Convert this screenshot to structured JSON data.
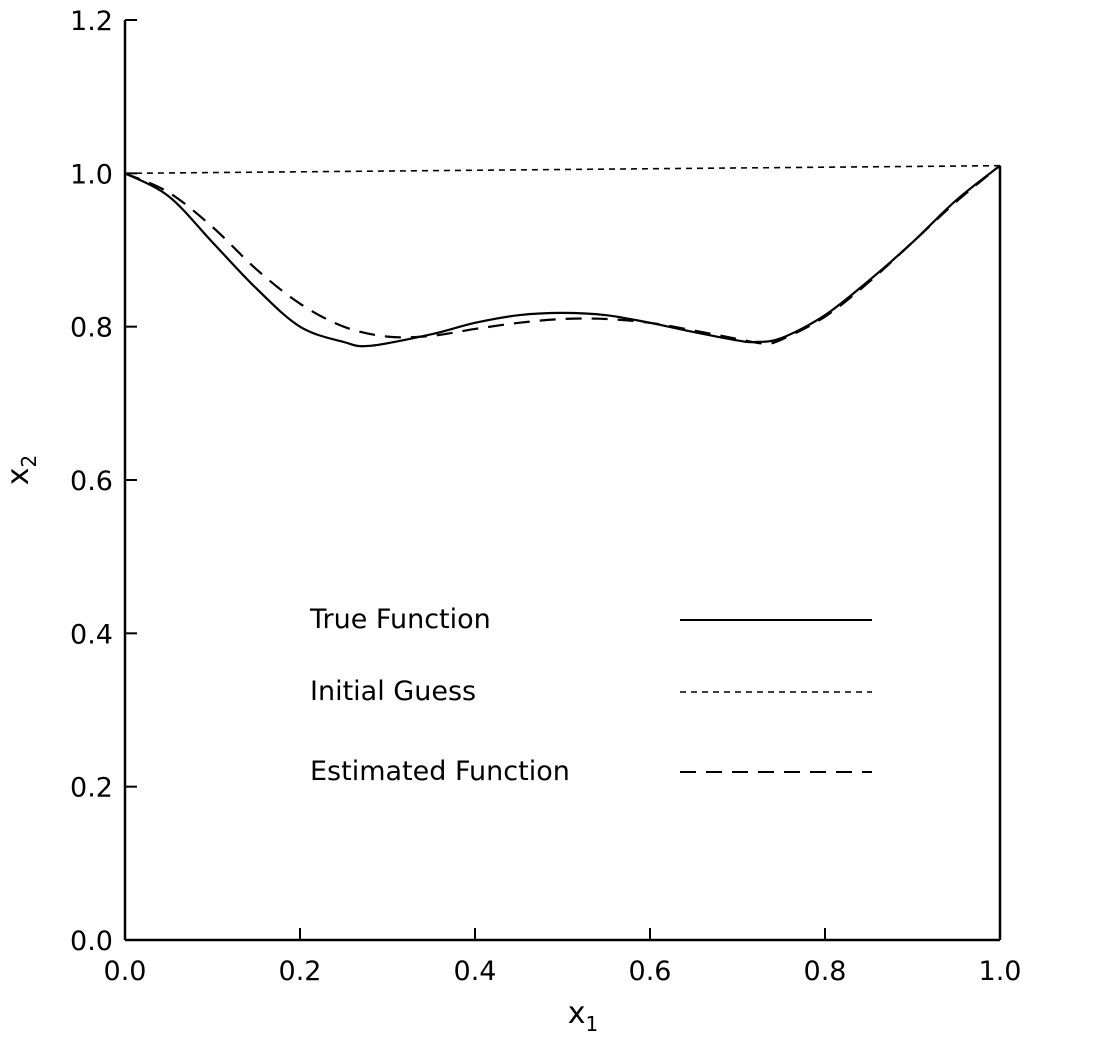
{
  "chart_data": {
    "type": "line",
    "xlabel": "x",
    "xlabel_sub": "1",
    "ylabel": "x",
    "ylabel_sub": "2",
    "xlim": [
      0.0,
      1.0
    ],
    "ylim": [
      0.0,
      1.2
    ],
    "x_ticks": [
      "0.0",
      "0.2",
      "0.4",
      "0.6",
      "0.8",
      "1.0"
    ],
    "y_ticks": [
      "0.0",
      "0.2",
      "0.4",
      "0.6",
      "0.8",
      "1.0",
      "1.2"
    ],
    "grid": false,
    "legend_position": "center",
    "series": [
      {
        "name": "True Function",
        "style": "solid",
        "x": [
          0.0,
          0.05,
          0.1,
          0.15,
          0.2,
          0.25,
          0.28,
          0.35,
          0.4,
          0.45,
          0.5,
          0.55,
          0.6,
          0.65,
          0.7,
          0.72,
          0.75,
          0.8,
          0.85,
          0.9,
          0.95,
          1.0
        ],
        "y": [
          1.0,
          0.97,
          0.91,
          0.85,
          0.8,
          0.78,
          0.775,
          0.79,
          0.805,
          0.815,
          0.818,
          0.815,
          0.805,
          0.793,
          0.782,
          0.78,
          0.785,
          0.815,
          0.86,
          0.91,
          0.965,
          1.01
        ]
      },
      {
        "name": "Initial Guess",
        "style": "dotted",
        "x": [
          0.0,
          1.0
        ],
        "y": [
          1.0,
          1.01
        ]
      },
      {
        "name": "Estimated Function",
        "style": "dashed",
        "x": [
          0.0,
          0.05,
          0.1,
          0.15,
          0.2,
          0.25,
          0.3,
          0.35,
          0.4,
          0.45,
          0.5,
          0.55,
          0.6,
          0.65,
          0.7,
          0.73,
          0.75,
          0.8,
          0.85,
          0.9,
          0.95,
          1.0
        ],
        "y": [
          1.0,
          0.975,
          0.93,
          0.875,
          0.83,
          0.8,
          0.787,
          0.788,
          0.797,
          0.805,
          0.81,
          0.81,
          0.805,
          0.795,
          0.784,
          0.778,
          0.783,
          0.813,
          0.858,
          0.91,
          0.963,
          1.01
        ]
      }
    ]
  }
}
